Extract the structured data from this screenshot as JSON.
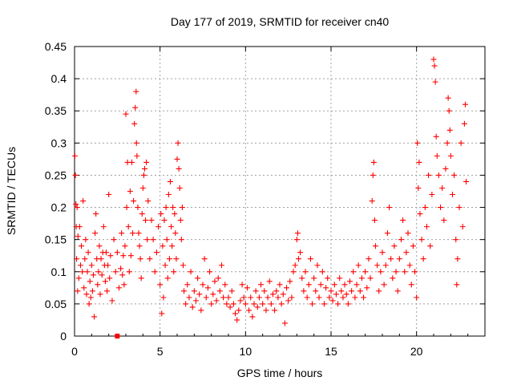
{
  "chart_data": {
    "type": "scatter",
    "title": "Day 177 of 2019, SRMTID for receiver cn40",
    "xlabel": "GPS time / hours",
    "ylabel": "SRMTID / TECUs",
    "xlim": [
      0,
      24
    ],
    "ylim": [
      0,
      0.45
    ],
    "xticks": [
      0,
      5,
      10,
      15,
      20
    ],
    "xtick_labels": [
      "0",
      "5",
      "10",
      "15",
      "20"
    ],
    "yticks": [
      0,
      0.05,
      0.1,
      0.15,
      0.2,
      0.25,
      0.3,
      0.35,
      0.4,
      0.45
    ],
    "ytick_labels": [
      "0",
      "0.05",
      "0.1",
      "0.15",
      "0.2",
      "0.25",
      "0.3",
      "0.35",
      "0.4",
      "0.45"
    ],
    "grid": true,
    "marker": "+",
    "color": "#ff0000",
    "extra_marker": {
      "x": 2.5,
      "y": 0.0,
      "shape": "square"
    },
    "series": [
      {
        "name": "SRMTID",
        "points": [
          [
            0.02,
            0.28
          ],
          [
            0.05,
            0.25
          ],
          [
            0.08,
            0.205
          ],
          [
            0.1,
            0.17
          ],
          [
            0.12,
            0.12
          ],
          [
            0.15,
            0.2
          ],
          [
            0.18,
            0.07
          ],
          [
            0.2,
            0.155
          ],
          [
            0.25,
            0.09
          ],
          [
            0.3,
            0.17
          ],
          [
            0.35,
            0.11
          ],
          [
            0.4,
            0.14
          ],
          [
            0.45,
            0.1
          ],
          [
            0.5,
            0.21
          ],
          [
            0.55,
            0.075
          ],
          [
            0.6,
            0.12
          ],
          [
            0.65,
            0.15
          ],
          [
            0.7,
            0.065
          ],
          [
            0.75,
            0.1
          ],
          [
            0.8,
            0.13
          ],
          [
            0.85,
            0.05
          ],
          [
            0.9,
            0.085
          ],
          [
            0.95,
            0.06
          ],
          [
            1.0,
            0.11
          ],
          [
            1.05,
            0.07
          ],
          [
            1.1,
            0.095
          ],
          [
            1.15,
            0.03
          ],
          [
            1.2,
            0.16
          ],
          [
            1.25,
            0.19
          ],
          [
            1.3,
            0.12
          ],
          [
            1.35,
            0.08
          ],
          [
            1.4,
            0.1
          ],
          [
            1.45,
            0.14
          ],
          [
            1.5,
            0.065
          ],
          [
            1.55,
            0.12
          ],
          [
            1.6,
            0.095
          ],
          [
            1.65,
            0.13
          ],
          [
            1.7,
            0.17
          ],
          [
            1.75,
            0.11
          ],
          [
            1.8,
            0.085
          ],
          [
            1.85,
            0.13
          ],
          [
            1.9,
            0.07
          ],
          [
            1.95,
            0.11
          ],
          [
            2.0,
            0.22
          ],
          [
            2.05,
            0.09
          ],
          [
            2.1,
            0.125
          ],
          [
            2.2,
            0.055
          ],
          [
            2.3,
            0.15
          ],
          [
            2.4,
            0.1
          ],
          [
            2.5,
            0.13
          ],
          [
            2.6,
            0.075
          ],
          [
            2.7,
            0.105
          ],
          [
            2.75,
            0.16
          ],
          [
            2.8,
            0.095
          ],
          [
            2.85,
            0.125
          ],
          [
            2.9,
            0.08
          ],
          [
            2.95,
            0.14
          ],
          [
            3.0,
            0.345
          ],
          [
            3.05,
            0.2
          ],
          [
            3.1,
            0.27
          ],
          [
            3.15,
            0.17
          ],
          [
            3.2,
            0.1
          ],
          [
            3.25,
            0.225
          ],
          [
            3.3,
            0.125
          ],
          [
            3.35,
            0.27
          ],
          [
            3.4,
            0.16
          ],
          [
            3.45,
            0.21
          ],
          [
            3.5,
            0.33
          ],
          [
            3.55,
            0.355
          ],
          [
            3.6,
            0.38
          ],
          [
            3.62,
            0.3
          ],
          [
            3.65,
            0.28
          ],
          [
            3.7,
            0.2
          ],
          [
            3.75,
            0.16
          ],
          [
            3.8,
            0.14
          ],
          [
            3.85,
            0.12
          ],
          [
            3.9,
            0.09
          ],
          [
            3.95,
            0.19
          ],
          [
            4.0,
            0.23
          ],
          [
            4.05,
            0.25
          ],
          [
            4.1,
            0.26
          ],
          [
            4.15,
            0.18
          ],
          [
            4.2,
            0.27
          ],
          [
            4.25,
            0.15
          ],
          [
            4.3,
            0.21
          ],
          [
            4.4,
            0.12
          ],
          [
            4.5,
            0.18
          ],
          [
            4.6,
            0.15
          ],
          [
            4.7,
            0.1
          ],
          [
            4.8,
            0.13
          ],
          [
            4.9,
            0.17
          ],
          [
            5.0,
            0.08
          ],
          [
            5.05,
            0.19
          ],
          [
            5.1,
            0.035
          ],
          [
            5.15,
            0.14
          ],
          [
            5.2,
            0.06
          ],
          [
            5.25,
            0.18
          ],
          [
            5.3,
            0.11
          ],
          [
            5.35,
            0.2
          ],
          [
            5.4,
            0.15
          ],
          [
            5.45,
            0.09
          ],
          [
            5.5,
            0.22
          ],
          [
            5.55,
            0.12
          ],
          [
            5.6,
            0.24
          ],
          [
            5.65,
            0.17
          ],
          [
            5.7,
            0.14
          ],
          [
            5.75,
            0.2
          ],
          [
            5.8,
            0.1
          ],
          [
            5.85,
            0.19
          ],
          [
            5.9,
            0.16
          ],
          [
            5.95,
            0.12
          ],
          [
            6.0,
            0.275
          ],
          [
            6.05,
            0.3
          ],
          [
            6.1,
            0.26
          ],
          [
            6.15,
            0.23
          ],
          [
            6.2,
            0.18
          ],
          [
            6.25,
            0.15
          ],
          [
            6.3,
            0.2
          ],
          [
            6.35,
            0.11
          ],
          [
            6.4,
            0.07
          ],
          [
            6.5,
            0.05
          ],
          [
            6.6,
            0.08
          ],
          [
            6.7,
            0.06
          ],
          [
            6.8,
            0.1
          ],
          [
            6.9,
            0.045
          ],
          [
            7.0,
            0.07
          ],
          [
            7.1,
            0.055
          ],
          [
            7.2,
            0.09
          ],
          [
            7.3,
            0.065
          ],
          [
            7.4,
            0.04
          ],
          [
            7.5,
            0.08
          ],
          [
            7.6,
            0.12
          ],
          [
            7.7,
            0.06
          ],
          [
            7.8,
            0.075
          ],
          [
            7.9,
            0.1
          ],
          [
            8.0,
            0.05
          ],
          [
            8.1,
            0.065
          ],
          [
            8.2,
            0.085
          ],
          [
            8.3,
            0.055
          ],
          [
            8.4,
            0.09
          ],
          [
            8.5,
            0.07
          ],
          [
            8.6,
            0.11
          ],
          [
            8.7,
            0.06
          ],
          [
            8.8,
            0.08
          ],
          [
            8.9,
            0.05
          ],
          [
            9.0,
            0.06
          ],
          [
            9.1,
            0.045
          ],
          [
            9.2,
            0.07
          ],
          [
            9.3,
            0.05
          ],
          [
            9.4,
            0.035
          ],
          [
            9.5,
            0.025
          ],
          [
            9.6,
            0.04
          ],
          [
            9.7,
            0.055
          ],
          [
            9.8,
            0.08
          ],
          [
            9.9,
            0.06
          ],
          [
            10.0,
            0.05
          ],
          [
            10.1,
            0.075
          ],
          [
            10.2,
            0.04
          ],
          [
            10.3,
            0.06
          ],
          [
            10.4,
            0.03
          ],
          [
            10.5,
            0.05
          ],
          [
            10.6,
            0.07
          ],
          [
            10.7,
            0.045
          ],
          [
            10.8,
            0.06
          ],
          [
            10.9,
            0.08
          ],
          [
            11.0,
            0.05
          ],
          [
            11.1,
            0.07
          ],
          [
            11.2,
            0.04
          ],
          [
            11.3,
            0.06
          ],
          [
            11.4,
            0.085
          ],
          [
            11.5,
            0.05
          ],
          [
            11.6,
            0.065
          ],
          [
            11.7,
            0.04
          ],
          [
            11.8,
            0.07
          ],
          [
            11.9,
            0.06
          ],
          [
            12.0,
            0.08
          ],
          [
            12.1,
            0.05
          ],
          [
            12.2,
            0.065
          ],
          [
            12.3,
            0.02
          ],
          [
            12.4,
            0.075
          ],
          [
            12.5,
            0.055
          ],
          [
            12.6,
            0.085
          ],
          [
            12.7,
            0.06
          ],
          [
            12.8,
            0.1
          ],
          [
            12.9,
            0.11
          ],
          [
            13.0,
            0.15
          ],
          [
            13.05,
            0.16
          ],
          [
            13.1,
            0.12
          ],
          [
            13.2,
            0.13
          ],
          [
            13.3,
            0.09
          ],
          [
            13.4,
            0.07
          ],
          [
            13.5,
            0.1
          ],
          [
            13.6,
            0.06
          ],
          [
            13.7,
            0.08
          ],
          [
            13.8,
            0.12
          ],
          [
            13.9,
            0.05
          ],
          [
            14.0,
            0.09
          ],
          [
            14.1,
            0.07
          ],
          [
            14.2,
            0.11
          ],
          [
            14.3,
            0.06
          ],
          [
            14.4,
            0.08
          ],
          [
            14.5,
            0.1
          ],
          [
            14.6,
            0.05
          ],
          [
            14.7,
            0.075
          ],
          [
            14.8,
            0.09
          ],
          [
            14.9,
            0.06
          ],
          [
            15.0,
            0.07
          ],
          [
            15.1,
            0.055
          ],
          [
            15.2,
            0.08
          ],
          [
            15.3,
            0.065
          ],
          [
            15.4,
            0.05
          ],
          [
            15.5,
            0.09
          ],
          [
            15.6,
            0.07
          ],
          [
            15.7,
            0.06
          ],
          [
            15.8,
            0.08
          ],
          [
            15.9,
            0.065
          ],
          [
            16.0,
            0.05
          ],
          [
            16.1,
            0.085
          ],
          [
            16.2,
            0.07
          ],
          [
            16.3,
            0.1
          ],
          [
            16.4,
            0.06
          ],
          [
            16.5,
            0.08
          ],
          [
            16.6,
            0.11
          ],
          [
            16.7,
            0.07
          ],
          [
            16.8,
            0.09
          ],
          [
            16.9,
            0.06
          ],
          [
            17.0,
            0.1
          ],
          [
            17.1,
            0.075
          ],
          [
            17.2,
            0.12
          ],
          [
            17.3,
            0.09
          ],
          [
            17.4,
            0.21
          ],
          [
            17.45,
            0.25
          ],
          [
            17.5,
            0.27
          ],
          [
            17.55,
            0.18
          ],
          [
            17.6,
            0.14
          ],
          [
            17.7,
            0.11
          ],
          [
            17.8,
            0.07
          ],
          [
            17.9,
            0.1
          ],
          [
            18.0,
            0.13
          ],
          [
            18.1,
            0.08
          ],
          [
            18.2,
            0.11
          ],
          [
            18.3,
            0.16
          ],
          [
            18.4,
            0.2
          ],
          [
            18.5,
            0.12
          ],
          [
            18.6,
            0.09
          ],
          [
            18.7,
            0.14
          ],
          [
            18.8,
            0.1
          ],
          [
            18.9,
            0.07
          ],
          [
            19.0,
            0.12
          ],
          [
            19.1,
            0.15
          ],
          [
            19.2,
            0.18
          ],
          [
            19.3,
            0.1
          ],
          [
            19.4,
            0.13
          ],
          [
            19.5,
            0.16
          ],
          [
            19.6,
            0.11
          ],
          [
            19.7,
            0.08
          ],
          [
            19.8,
            0.14
          ],
          [
            19.9,
            0.1
          ],
          [
            20.0,
            0.06
          ],
          [
            20.05,
            0.3
          ],
          [
            20.1,
            0.23
          ],
          [
            20.15,
            0.27
          ],
          [
            20.2,
            0.19
          ],
          [
            20.3,
            0.15
          ],
          [
            20.4,
            0.12
          ],
          [
            20.5,
            0.2
          ],
          [
            20.6,
            0.17
          ],
          [
            20.7,
            0.25
          ],
          [
            20.8,
            0.14
          ],
          [
            20.9,
            0.22
          ],
          [
            21.0,
            0.43
          ],
          [
            21.05,
            0.42
          ],
          [
            21.1,
            0.395
          ],
          [
            21.15,
            0.31
          ],
          [
            21.2,
            0.28
          ],
          [
            21.3,
            0.25
          ],
          [
            21.4,
            0.2
          ],
          [
            21.5,
            0.23
          ],
          [
            21.6,
            0.18
          ],
          [
            21.7,
            0.26
          ],
          [
            21.8,
            0.3
          ],
          [
            21.85,
            0.37
          ],
          [
            21.9,
            0.35
          ],
          [
            21.95,
            0.32
          ],
          [
            22.0,
            0.28
          ],
          [
            22.1,
            0.22
          ],
          [
            22.2,
            0.25
          ],
          [
            22.3,
            0.15
          ],
          [
            22.35,
            0.08
          ],
          [
            22.4,
            0.12
          ],
          [
            22.5,
            0.2
          ],
          [
            22.6,
            0.3
          ],
          [
            22.7,
            0.17
          ],
          [
            22.8,
            0.33
          ],
          [
            22.85,
            0.36
          ],
          [
            22.9,
            0.24
          ]
        ]
      }
    ]
  }
}
